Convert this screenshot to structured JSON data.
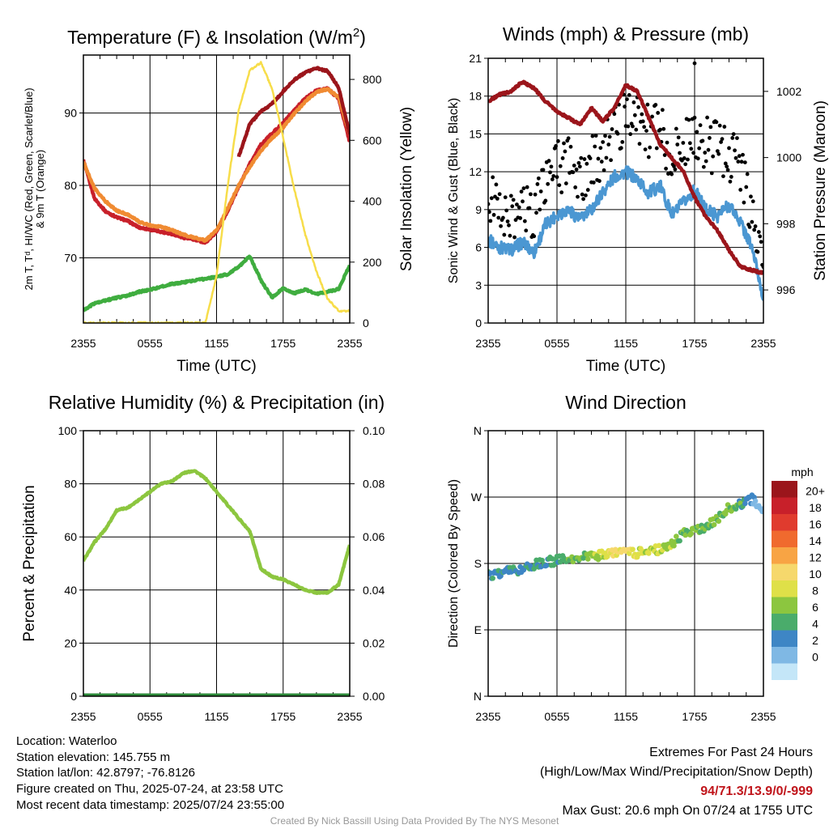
{
  "chart_data": [
    {
      "type": "line",
      "title": "Temperature (F) & Insolation (W/m²)",
      "xlabel": "Time (UTC)",
      "ylabel_left": "2m T, Td, HI/WC (Red, Green, Scarlet/Blue) & 9m T (Orange)",
      "ylabel_right": "Solar Insolation (Yellow)",
      "x_ticks": [
        "2355",
        "0555",
        "1155",
        "1755",
        "2355"
      ],
      "y_ticks_left": [
        "70",
        "80",
        "90"
      ],
      "y_ticks_right": [
        "0",
        "200",
        "400",
        "600",
        "800"
      ],
      "ylim_left": [
        61,
        98
      ],
      "ylim_right": [
        0,
        880
      ],
      "hours": [
        0,
        1,
        2,
        3,
        4,
        5,
        6,
        7,
        8,
        9,
        10,
        11,
        12,
        13,
        14,
        15,
        16,
        17,
        18,
        19,
        20,
        21,
        22,
        23,
        24
      ],
      "series": [
        {
          "name": "2m T",
          "axis": "left",
          "color": "#c8202a",
          "values": [
            83.5,
            78.2,
            76.4,
            75.6,
            75.1,
            74.2,
            73.9,
            73.6,
            73.3,
            72.8,
            72.5,
            72.1,
            73.6,
            76.5,
            79.8,
            83.0,
            85.6,
            87.2,
            88.6,
            90.4,
            92.0,
            93.1,
            93.4,
            92.0,
            86.0
          ]
        },
        {
          "name": "9m T",
          "axis": "left",
          "color": "#f08b32",
          "values": [
            83.2,
            79.6,
            77.8,
            76.5,
            76.0,
            75.0,
            74.5,
            74.3,
            73.8,
            73.2,
            72.8,
            72.4,
            73.8,
            76.8,
            80.0,
            82.6,
            84.8,
            86.5,
            88.0,
            89.9,
            91.6,
            92.9,
            93.3,
            92.2,
            87.0
          ]
        },
        {
          "name": "HI/WC",
          "axis": "left",
          "color": "#9b151b",
          "values": [
            null,
            null,
            null,
            null,
            null,
            null,
            null,
            null,
            null,
            null,
            null,
            null,
            null,
            null,
            84.0,
            88.5,
            90.2,
            91.3,
            93.0,
            94.6,
            95.6,
            96.2,
            95.8,
            93.5,
            87.0
          ]
        },
        {
          "name": "Td",
          "axis": "left",
          "color": "#3fad3f",
          "values": [
            62.8,
            63.7,
            64.1,
            64.5,
            64.8,
            65.3,
            65.6,
            66.0,
            66.4,
            66.6,
            66.9,
            67.1,
            67.4,
            67.7,
            68.8,
            70.2,
            66.9,
            64.5,
            65.8,
            65.1,
            65.6,
            65.0,
            65.3,
            65.7,
            69.0
          ]
        },
        {
          "name": "Solar Insolation",
          "axis": "right",
          "color": "#f7dd4a",
          "values": [
            0,
            0,
            0,
            0,
            0,
            0,
            0,
            0,
            0,
            0,
            0,
            0,
            155,
            450,
            700,
            830,
            855,
            770,
            610,
            440,
            290,
            170,
            80,
            40,
            40
          ]
        }
      ]
    },
    {
      "type": "line",
      "title": "Winds (mph) & Pressure (mb)",
      "xlabel": "Time (UTC)",
      "ylabel_left": "Sonic Wind & Gust (Blue, Black)",
      "ylabel_right": "Station Pressure (Maroon)",
      "x_ticks": [
        "2355",
        "0555",
        "1155",
        "1755",
        "2355"
      ],
      "y_ticks_left": [
        "0",
        "3",
        "6",
        "9",
        "12",
        "15",
        "18",
        "21"
      ],
      "y_ticks_right": [
        "996",
        "998",
        "1000",
        "1002"
      ],
      "ylim_left": [
        0,
        21
      ],
      "ylim_right": [
        995.0,
        1003.0
      ],
      "hours": [
        0,
        1,
        2,
        3,
        4,
        5,
        6,
        7,
        8,
        9,
        10,
        11,
        12,
        13,
        14,
        15,
        16,
        17,
        18,
        19,
        20,
        21,
        22,
        23,
        24
      ],
      "series": [
        {
          "name": "Sonic Wind",
          "axis": "left",
          "color": "#4b97d2",
          "values": [
            6.6,
            6.0,
            5.8,
            6.4,
            5.6,
            7.8,
            8.6,
            9.0,
            8.2,
            9.0,
            10.4,
            11.6,
            12.0,
            11.4,
            10.3,
            10.9,
            8.6,
            9.5,
            10.5,
            9.0,
            8.5,
            9.4,
            8.0,
            6.0,
            2.0
          ]
        },
        {
          "name": "Gust",
          "axis": "left",
          "color": "#000000",
          "style": "points",
          "values": [
            10.5,
            8.6,
            8.4,
            9.2,
            8.8,
            11.0,
            12.2,
            12.8,
            11.5,
            12.6,
            13.8,
            15.0,
            16.2,
            16.5,
            15.0,
            15.5,
            12.6,
            14.8,
            14.6,
            14.2,
            13.8,
            13.2,
            12.4,
            8.0,
            4.0
          ]
        },
        {
          "name": "Station Pressure",
          "axis": "right",
          "color": "#9b151b",
          "values": [
            1001.7,
            1001.9,
            1002.0,
            1002.3,
            1002.1,
            1001.7,
            1001.4,
            1001.2,
            1001.0,
            1001.5,
            1001.1,
            1001.5,
            1002.2,
            1002.0,
            1001.2,
            1000.4,
            1000.0,
            999.6,
            998.8,
            998.2,
            997.8,
            997.2,
            996.7,
            996.6,
            996.5
          ]
        }
      ],
      "max_gust_point": {
        "hour": 18,
        "value": 20.6
      }
    },
    {
      "type": "line",
      "title": "Relative Humidity (%) & Precipitation (in)",
      "xlabel": "",
      "ylabel_left": "Percent & Precipitation",
      "x_ticks": [
        "2355",
        "0555",
        "1155",
        "1755",
        "2355"
      ],
      "y_ticks_left": [
        "0",
        "20",
        "40",
        "60",
        "80",
        "100"
      ],
      "y_ticks_right": [
        "0.00",
        "0.02",
        "0.04",
        "0.06",
        "0.08",
        "0.10"
      ],
      "ylim_left": [
        0,
        100
      ],
      "ylim_right": [
        0,
        0.1
      ],
      "hours": [
        0,
        1,
        2,
        3,
        4,
        5,
        6,
        7,
        8,
        9,
        10,
        11,
        12,
        13,
        14,
        15,
        16,
        17,
        18,
        19,
        20,
        21,
        22,
        23,
        24
      ],
      "series": [
        {
          "name": "Relative Humidity",
          "axis": "left",
          "color": "#8cc63f",
          "values": [
            51,
            58,
            63,
            70,
            71,
            74,
            77,
            80,
            81,
            84,
            85,
            82,
            77,
            72,
            67,
            62,
            48,
            45,
            44,
            42,
            40,
            39,
            39,
            42,
            57
          ]
        },
        {
          "name": "Precipitation",
          "axis": "right",
          "color": "#2e8b3a",
          "values": [
            0,
            0,
            0,
            0,
            0,
            0,
            0,
            0,
            0,
            0,
            0,
            0,
            0,
            0,
            0,
            0,
            0,
            0,
            0,
            0,
            0,
            0,
            0,
            0,
            0
          ]
        }
      ]
    },
    {
      "type": "scatter",
      "title": "Wind Direction",
      "xlabel": "",
      "ylabel_left": "Direction (Colored By Speed)",
      "x_ticks": [
        "2355",
        "0555",
        "1155",
        "1755",
        "2355"
      ],
      "y_ticks_left": [
        "N",
        "E",
        "S",
        "W",
        "N"
      ],
      "ylim_left": [
        0,
        360
      ],
      "hours": [
        0,
        1,
        2,
        3,
        4,
        5,
        6,
        7,
        8,
        9,
        10,
        11,
        12,
        13,
        14,
        15,
        16,
        17,
        18,
        19,
        20,
        21,
        22,
        23,
        24
      ],
      "direction_deg": [
        165,
        166,
        170,
        172,
        178,
        182,
        184,
        186,
        188,
        189,
        191,
        193,
        195,
        194,
        196,
        200,
        205,
        220,
        222,
        230,
        240,
        255,
        260,
        268,
        255
      ],
      "speed_mph": [
        6,
        6,
        6,
        6,
        6,
        6,
        7,
        8,
        8,
        9,
        10,
        12,
        13,
        11,
        10,
        10,
        9,
        8,
        9,
        8,
        8,
        8,
        7,
        5,
        3
      ],
      "colorbar": {
        "unit": "mph",
        "labels": [
          "20+",
          "18",
          "16",
          "14",
          "12",
          "10",
          "8",
          "6",
          "4",
          "2",
          "0"
        ],
        "colors": [
          "#9b151b",
          "#c8202a",
          "#e03b2e",
          "#f06a2e",
          "#f8a444",
          "#f6d86c",
          "#dfe048",
          "#8cc63f",
          "#4aac6b",
          "#3e86c5",
          "#7fb8e4",
          "#c4e6f8"
        ]
      }
    }
  ],
  "info": {
    "location": "Location: Waterloo",
    "elevation": "Station elevation: 145.755 m",
    "latlon": "Station lat/lon: 42.8797; -76.8126",
    "created": "Figure created on Thu, 2025-07-24, at 23:58 UTC",
    "recent": "Most recent data timestamp: 2025/07/24 23:55:00"
  },
  "extremes": {
    "title": "Extremes For Past 24 Hours",
    "subtitle": "(High/Low/Max Wind/Precipitation/Snow Depth)",
    "values": "94/71.3/13.9/0/-999",
    "gust": "Max Gust: 20.6 mph On 07/24 at 1755 UTC"
  },
  "credit": "Created By Nick Bassill Using Data Provided By The NYS Mesonet"
}
